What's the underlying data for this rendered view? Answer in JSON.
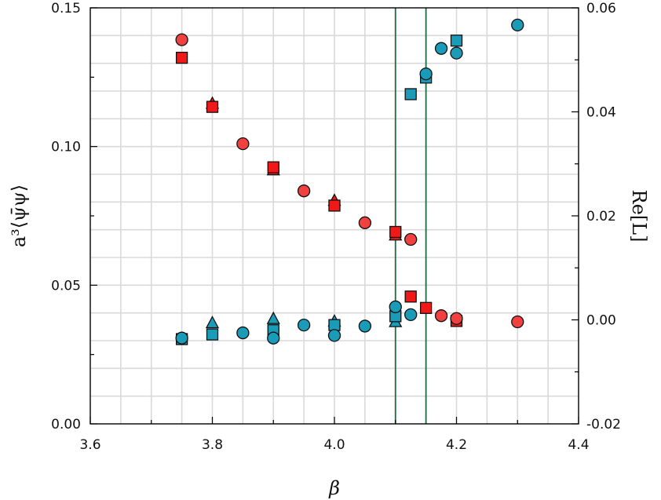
{
  "chart_data": {
    "type": "scatter",
    "title": "",
    "xlabel": "β",
    "ylabel_left": "a³⟨ψ̄ψ⟩",
    "ylabel_right": "Re[L]",
    "xlim": [
      3.6,
      4.4
    ],
    "ylim_left": [
      0.0,
      0.15
    ],
    "ylim_right": [
      -0.02,
      0.06
    ],
    "x_ticks": [
      "3.6",
      "3.8",
      "4.0",
      "4.2",
      "4.4"
    ],
    "y_left_ticks": [
      "0.00",
      "0.05",
      "0.10",
      "0.15"
    ],
    "y_right_ticks": [
      "-0.02",
      "0.00",
      "0.02",
      "0.04",
      "0.06"
    ],
    "grid": true,
    "colors": {
      "condensate": "#f02828",
      "polyakov": "#1a9bb8",
      "vlines": "#1e6b47"
    },
    "vertical_lines": [
      4.1,
      4.15
    ],
    "series": [
      {
        "name": "condensate-circles",
        "axis": "left",
        "marker": "circle",
        "color": "#f04040",
        "x": [
          3.75,
          3.85,
          3.95,
          4.05,
          4.125,
          4.175,
          4.2,
          4.3
        ],
        "y": [
          0.1385,
          0.101,
          0.084,
          0.0725,
          0.0665,
          0.039,
          0.038,
          0.0368
        ]
      },
      {
        "name": "condensate-squares",
        "axis": "left",
        "marker": "square",
        "color": "#f01818",
        "x": [
          3.75,
          3.8,
          3.9,
          4.0,
          4.1,
          4.125,
          4.15,
          4.2
        ],
        "y": [
          0.132,
          0.1143,
          0.0925,
          0.0787,
          0.0692,
          0.0459,
          0.0418,
          0.0371
        ]
      },
      {
        "name": "condensate-triangles",
        "axis": "left",
        "marker": "triangle",
        "color": "#f01818",
        "x": [
          3.8,
          3.9,
          4.0,
          4.1
        ],
        "y": [
          0.1155,
          0.0915,
          0.0805,
          0.068
        ]
      },
      {
        "name": "polyakov-circles",
        "axis": "right",
        "marker": "circle",
        "color": "#1a9bb8",
        "x": [
          3.75,
          3.85,
          3.9,
          3.95,
          4.0,
          4.05,
          4.1,
          4.125,
          4.15,
          4.175,
          4.2,
          4.3
        ],
        "y": [
          -0.0035,
          -0.0025,
          -0.0035,
          -0.001,
          -0.003,
          -0.0012,
          0.0025,
          0.001,
          0.0473,
          0.0522,
          0.0513,
          0.0567
        ]
      },
      {
        "name": "polyakov-squares",
        "axis": "right",
        "marker": "square",
        "color": "#1a9bb8",
        "x": [
          3.75,
          3.8,
          3.9,
          4.0,
          4.1,
          4.125,
          4.15,
          4.2
        ],
        "y": [
          -0.0037,
          -0.0028,
          -0.002,
          -0.001,
          0.0007,
          0.0434,
          0.0466,
          0.0537
        ]
      },
      {
        "name": "polyakov-triangles",
        "axis": "right",
        "marker": "triangle",
        "color": "#1a9bb8",
        "x": [
          3.8,
          3.9,
          4.0,
          4.1
        ],
        "y": [
          -0.0006,
          0.0002,
          -0.0003,
          -0.0004
        ]
      }
    ]
  }
}
